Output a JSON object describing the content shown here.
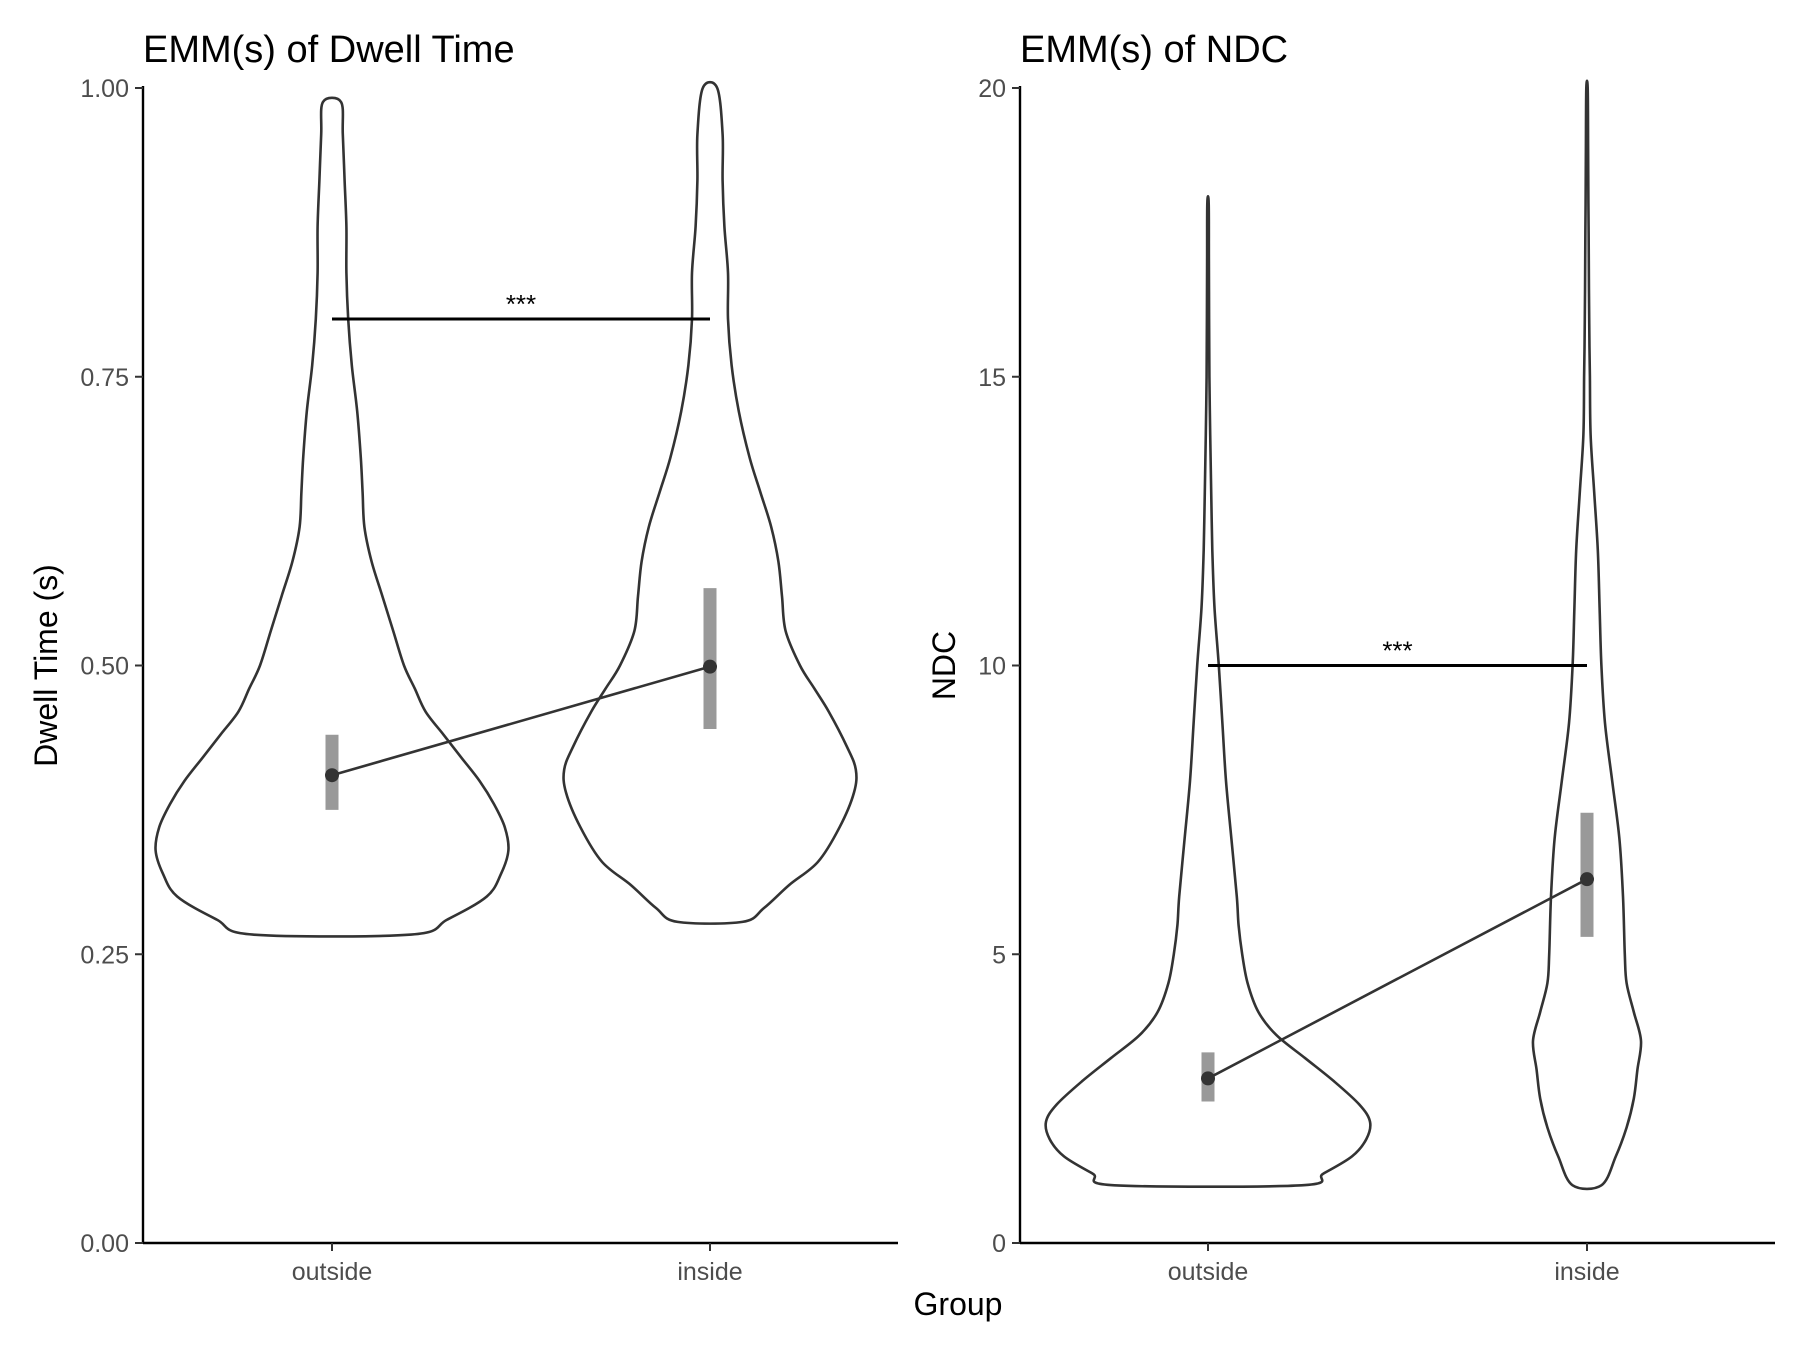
{
  "chart_data": {
    "type": "violin",
    "x_title": "Group",
    "panels": [
      {
        "title": "EMM(s) of Dwell Time",
        "ylabel": "Dwell Time (s)",
        "categories": [
          "outside",
          "inside"
        ],
        "ylim": [
          0,
          1
        ],
        "y_ticks": [
          0,
          0.25,
          0.5,
          0.75,
          1
        ],
        "y_tick_labels": [
          "0.00",
          "0.25",
          "0.50",
          "0.75",
          "1.00"
        ],
        "emm": [
          0.405,
          0.499
        ],
        "ci": [
          [
            0.375,
            0.44
          ],
          [
            0.445,
            0.567
          ]
        ],
        "significance": {
          "label": "***",
          "y": 0.8
        },
        "violins": [
          {
            "min": 0.267,
            "max": 0.988,
            "profile": [
              [
                0.267,
                0.22
              ],
              [
                0.28,
                0.32
              ],
              [
                0.3,
                0.43
              ],
              [
                0.32,
                0.47
              ],
              [
                0.34,
                0.49
              ],
              [
                0.36,
                0.48
              ],
              [
                0.38,
                0.45
              ],
              [
                0.4,
                0.41
              ],
              [
                0.42,
                0.36
              ],
              [
                0.44,
                0.31
              ],
              [
                0.46,
                0.26
              ],
              [
                0.48,
                0.23
              ],
              [
                0.5,
                0.2
              ],
              [
                0.53,
                0.17
              ],
              [
                0.56,
                0.14
              ],
              [
                0.59,
                0.11
              ],
              [
                0.62,
                0.09
              ],
              [
                0.65,
                0.085
              ],
              [
                0.68,
                0.08
              ],
              [
                0.72,
                0.07
              ],
              [
                0.76,
                0.055
              ],
              [
                0.8,
                0.045
              ],
              [
                0.84,
                0.04
              ],
              [
                0.88,
                0.04
              ],
              [
                0.92,
                0.035
              ],
              [
                0.96,
                0.03
              ],
              [
                0.988,
                0.025
              ]
            ]
          },
          {
            "min": 0.278,
            "max": 1.0,
            "profile": [
              [
                0.278,
                0.09
              ],
              [
                0.29,
                0.15
              ],
              [
                0.31,
                0.22
              ],
              [
                0.33,
                0.3
              ],
              [
                0.36,
                0.36
              ],
              [
                0.39,
                0.4
              ],
              [
                0.41,
                0.405
              ],
              [
                0.43,
                0.38
              ],
              [
                0.46,
                0.33
              ],
              [
                0.48,
                0.29
              ],
              [
                0.5,
                0.25
              ],
              [
                0.53,
                0.21
              ],
              [
                0.56,
                0.2
              ],
              [
                0.59,
                0.19
              ],
              [
                0.62,
                0.17
              ],
              [
                0.65,
                0.14
              ],
              [
                0.68,
                0.11
              ],
              [
                0.72,
                0.08
              ],
              [
                0.76,
                0.06
              ],
              [
                0.8,
                0.05
              ],
              [
                0.84,
                0.05
              ],
              [
                0.88,
                0.04
              ],
              [
                0.92,
                0.035
              ],
              [
                0.96,
                0.035
              ],
              [
                1.0,
                0.02
              ]
            ]
          }
        ]
      },
      {
        "title": "EMM(s) of NDC",
        "ylabel": "NDC",
        "categories": [
          "outside",
          "inside"
        ],
        "ylim": [
          0,
          20
        ],
        "y_ticks": [
          0,
          5,
          10,
          15,
          20
        ],
        "y_tick_labels": [
          "0",
          "5",
          "10",
          "15",
          "20"
        ],
        "emm": [
          2.85,
          6.3
        ],
        "ci": [
          [
            2.45,
            3.3
          ],
          [
            5.3,
            7.45
          ]
        ],
        "significance": {
          "label": "***",
          "y": 10
        },
        "violins": [
          {
            "min": 1.0,
            "max": 18.0,
            "profile": [
              [
                1.0,
                0.26
              ],
              [
                1.2,
                0.32
              ],
              [
                1.5,
                0.4
              ],
              [
                1.8,
                0.44
              ],
              [
                2.1,
                0.45
              ],
              [
                2.4,
                0.42
              ],
              [
                2.8,
                0.35
              ],
              [
                3.2,
                0.27
              ],
              [
                3.6,
                0.19
              ],
              [
                4.0,
                0.14
              ],
              [
                4.5,
                0.11
              ],
              [
                5.0,
                0.095
              ],
              [
                5.5,
                0.085
              ],
              [
                6.0,
                0.08
              ],
              [
                7.0,
                0.065
              ],
              [
                8.0,
                0.05
              ],
              [
                9.0,
                0.04
              ],
              [
                10.0,
                0.03
              ],
              [
                11.0,
                0.018
              ],
              [
                12.0,
                0.012
              ],
              [
                13.0,
                0.009
              ],
              [
                14.0,
                0.006
              ],
              [
                15.0,
                0.004
              ],
              [
                16.0,
                0.003
              ],
              [
                17.0,
                0.0025
              ],
              [
                18.0,
                0.002
              ]
            ]
          },
          {
            "min": 1.0,
            "max": 20.0,
            "profile": [
              [
                1.0,
                0.04
              ],
              [
                1.5,
                0.08
              ],
              [
                2.0,
                0.11
              ],
              [
                2.5,
                0.13
              ],
              [
                3.0,
                0.14
              ],
              [
                3.5,
                0.15
              ],
              [
                4.0,
                0.13
              ],
              [
                4.5,
                0.11
              ],
              [
                5.0,
                0.105
              ],
              [
                6.0,
                0.1
              ],
              [
                7.0,
                0.09
              ],
              [
                8.0,
                0.07
              ],
              [
                9.0,
                0.05
              ],
              [
                10.0,
                0.04
              ],
              [
                11.0,
                0.035
              ],
              [
                12.0,
                0.03
              ],
              [
                13.0,
                0.02
              ],
              [
                14.0,
                0.01
              ],
              [
                15.0,
                0.008
              ],
              [
                16.0,
                0.006
              ],
              [
                17.0,
                0.005
              ],
              [
                18.0,
                0.004
              ],
              [
                19.0,
                0.003
              ],
              [
                20.0,
                0.002
              ]
            ]
          }
        ]
      }
    ]
  }
}
